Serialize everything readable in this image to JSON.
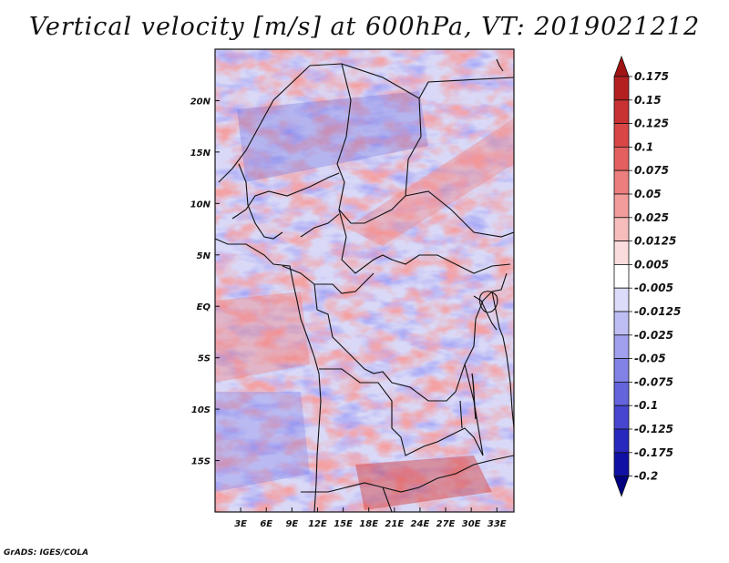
{
  "title": "Vertical velocity [m/s] at 600hPa, VT: 2019021212",
  "footer": "GrADS: IGES/COLA",
  "map": {
    "lon_range": [
      0,
      35
    ],
    "lat_range": [
      -20,
      25
    ],
    "x_ticks": [
      "3E",
      "6E",
      "9E",
      "12E",
      "15E",
      "18E",
      "21E",
      "24E",
      "27E",
      "30E",
      "33E"
    ],
    "x_tick_values": [
      3,
      6,
      9,
      12,
      15,
      18,
      21,
      24,
      27,
      30,
      33
    ],
    "y_ticks": [
      "20N",
      "15N",
      "10N",
      "5N",
      "EQ",
      "5S",
      "10S",
      "15S"
    ],
    "y_tick_values": [
      20,
      15,
      10,
      5,
      0,
      -5,
      -10,
      -15
    ]
  },
  "colorbar": {
    "labels": [
      "0.175",
      "0.15",
      "0.125",
      "0.1",
      "0.075",
      "0.05",
      "0.025",
      "0.0125",
      "0.005",
      "-0.005",
      "-0.0125",
      "-0.025",
      "-0.05",
      "-0.075",
      "-0.1",
      "-0.125",
      "-0.175",
      "-0.2"
    ],
    "colors": [
      "#a01414",
      "#b42020",
      "#c83232",
      "#d84646",
      "#e46060",
      "#ec7e7e",
      "#f29c9c",
      "#f7bdbd",
      "#fbdcdc",
      "#ffffff",
      "#dcdcfa",
      "#bebef4",
      "#a0a0ee",
      "#8282e6",
      "#6464dc",
      "#4646d0",
      "#2828be",
      "#1010a4",
      "#000080"
    ]
  }
}
